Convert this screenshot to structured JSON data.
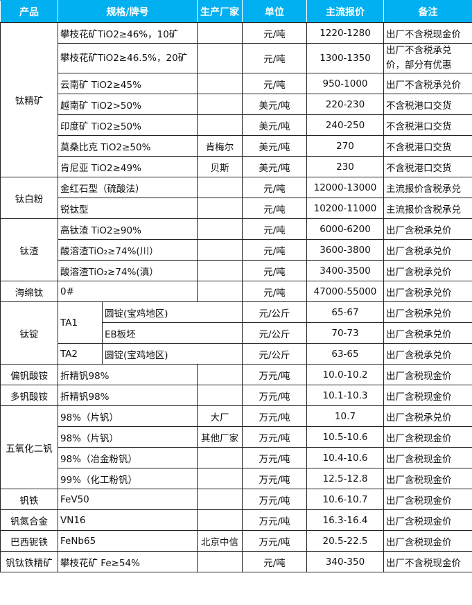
{
  "headers": [
    "产品",
    "规格/牌号",
    "生产厂家",
    "单位",
    "主流报价",
    "备注"
  ],
  "groups": [
    {
      "product": "钛精矿",
      "rows": [
        {
          "spec": "攀枝花矿TiO2≥46%，10矿",
          "maker": "",
          "unit": "元/吨",
          "price": "1220-1280",
          "note": "出厂不含税现金价"
        },
        {
          "spec": "攀枝花矿TiO2≥46.5%，20矿",
          "maker": "",
          "unit": "元/吨",
          "price": "1300-1350",
          "note": "出厂不含税承兑价，部分有优惠",
          "tall": true
        },
        {
          "spec": "云南矿 TiO2≥45%",
          "maker": "",
          "unit": "元/吨",
          "price": "950-1000",
          "note": "出厂不含税承兑价"
        },
        {
          "spec": "越南矿 TiO2>50%",
          "maker": "",
          "unit": "美元/吨",
          "price": "220-230",
          "note": "不含税港口交货"
        },
        {
          "spec": "印度矿 TiO2≥50%",
          "maker": "",
          "unit": "美元/吨",
          "price": "240-250",
          "note": "不含税港口交货"
        },
        {
          "spec": "莫桑比克 TiO2≥50%",
          "maker": "肯梅尔",
          "unit": "美元/吨",
          "price": "270",
          "note": "不含税港口交货"
        },
        {
          "spec": "肯尼亚 TiO2≥49%",
          "maker": "贝斯",
          "unit": "美元/吨",
          "price": "230",
          "note": "不含税港口交货"
        }
      ]
    },
    {
      "product": "钛白粉",
      "rows": [
        {
          "spec": "金红石型（硫酸法）",
          "maker": "",
          "unit": "元/吨",
          "price": "12000-13000",
          "note": "主流报价含税承兑"
        },
        {
          "spec": "锐钛型",
          "maker": "",
          "unit": "元/吨",
          "price": "10200-11000",
          "note": "主流报价含税承兑"
        }
      ]
    },
    {
      "product": "钛渣",
      "rows": [
        {
          "spec": "高钛渣 TiO2≥90%",
          "maker": "",
          "unit": "元/吨",
          "price": "6000-6200",
          "note": "出厂含税承兑价"
        },
        {
          "spec": "酸溶渣TiO₂≥74%(川）",
          "maker": "",
          "unit": "元/吨",
          "price": "3600-3800",
          "note": "出厂含税承兑价"
        },
        {
          "spec": "酸溶渣TiO₂≥74%(滇）",
          "maker": "",
          "unit": "元/吨",
          "price": "3400-3500",
          "note": "出厂含税承兑价"
        }
      ]
    },
    {
      "product": "海绵钛",
      "rows": [
        {
          "spec": "0#",
          "maker": "",
          "unit": "元/吨",
          "price": "47000-55000",
          "note": "出厂含税承兑价"
        }
      ]
    },
    {
      "product": "钛锭",
      "split": true,
      "rows": [
        {
          "grade": "TA1",
          "gradeSpan": 2,
          "spec": "圆锭(宝鸡地区)",
          "unit": "元/公斤",
          "price": "65-67",
          "note": "出厂含税承兑价"
        },
        {
          "spec": "EB板坯",
          "unit": "元/公斤",
          "price": "70-73",
          "note": "出厂含税承兑价"
        },
        {
          "grade": "TA2",
          "gradeSpan": 1,
          "spec": "圆锭(宝鸡地区)",
          "unit": "元/公斤",
          "price": "63-65",
          "note": "出厂含税承兑价"
        }
      ]
    },
    {
      "product": "偏钒酸铵",
      "rows": [
        {
          "spec": "折精钒98%",
          "maker": "",
          "unit": "万元/吨",
          "price": "10.0-10.2",
          "note": "出厂含税现金价"
        }
      ]
    },
    {
      "product": "多钒酸铵",
      "rows": [
        {
          "spec": "折精钒98%",
          "maker": "",
          "unit": "万元/吨",
          "price": "10.1-10.3",
          "note": "出厂含税现金价"
        }
      ]
    },
    {
      "product": "五氧化二钒",
      "rows": [
        {
          "spec": "98%（片钒）",
          "maker": "大厂",
          "unit": "万元/吨",
          "price": "10.7",
          "note": "出厂含税承兑价"
        },
        {
          "spec": "98%（片钒）",
          "maker": "其他厂家",
          "unit": "万元/吨",
          "price": "10.5-10.6",
          "note": "出厂含税现金价"
        },
        {
          "spec": "98%（冶金粉钒）",
          "maker": "",
          "unit": "万元/吨",
          "price": "10.4-10.6",
          "note": "出厂含税现金价"
        },
        {
          "spec": "99%（化工粉钒）",
          "maker": "",
          "unit": "万元/吨",
          "price": "12.5-12.8",
          "note": "出厂含税现金价"
        }
      ]
    },
    {
      "product": "钒铁",
      "rows": [
        {
          "spec": "FeV50",
          "maker": "",
          "unit": "万元/吨",
          "price": "10.6-10.7",
          "note": "出厂含税现金价"
        }
      ]
    },
    {
      "product": "钒氮合金",
      "rows": [
        {
          "spec": "VN16",
          "maker": "",
          "unit": "万元/吨",
          "price": "16.3-16.4",
          "note": "出厂含税现金价"
        }
      ]
    },
    {
      "product": "巴西铌铁",
      "rows": [
        {
          "spec": "FeNb65",
          "maker": "北京中信",
          "unit": "万元/吨",
          "price": "20.5-22.5",
          "note": "出厂含税现金价"
        }
      ]
    },
    {
      "product": "钒钛铁精矿",
      "rows": [
        {
          "spec": "攀枝花矿 Fe≥54%",
          "maker": "",
          "unit": "元/吨",
          "price": "340-350",
          "note": "出厂不含税现金价"
        }
      ]
    }
  ]
}
